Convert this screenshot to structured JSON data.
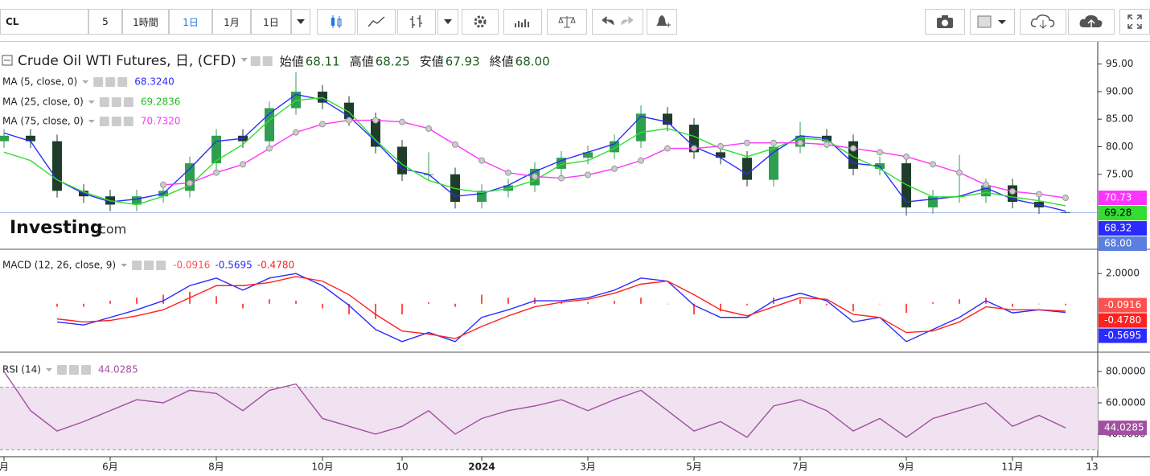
{
  "toolbar": {
    "symbol": "CL",
    "intervals": [
      "5",
      "1時間",
      "1日",
      "1月",
      "1日"
    ]
  },
  "chart_data": [
    {
      "type": "candlestick",
      "title": "Crude Oil WTI Futures, 日, (CFD)",
      "ohlc_labels": [
        {
          "label": "始値",
          "value": "68.11"
        },
        {
          "label": "高値",
          "value": "68.25"
        },
        {
          "label": "安値",
          "value": "67.93"
        },
        {
          "label": "終値",
          "value": "68.00"
        }
      ],
      "open": [
        81,
        82,
        81,
        72,
        71,
        69.5,
        71,
        72,
        77,
        82,
        81,
        87,
        90,
        88,
        85,
        80,
        75,
        75,
        70,
        72,
        73,
        76,
        78,
        79,
        81,
        86,
        84,
        79,
        78,
        74,
        80,
        82,
        81,
        76,
        77,
        69,
        71,
        71,
        73,
        70,
        68.11,
        null
      ],
      "high": [
        83.2,
        83.2,
        82.2,
        73.2,
        72.2,
        72.2,
        73.2,
        78.2,
        83.2,
        83.2,
        88.2,
        93.5,
        91.2,
        89.2,
        86.2,
        81.2,
        79,
        76.2,
        73.2,
        74.2,
        77.2,
        79.2,
        80.2,
        82.2,
        87.5,
        87.2,
        85.2,
        80.2,
        79.2,
        81.2,
        84.5,
        83.2,
        82.2,
        78.2,
        78.2,
        72.2,
        78.5,
        74.2,
        74.2,
        71.2,
        68.25,
        null
      ],
      "low": [
        79.8,
        79.8,
        70.8,
        69.8,
        68.3,
        68.3,
        69.8,
        70.8,
        75.8,
        79.8,
        79.8,
        85.8,
        86.8,
        83.8,
        78.8,
        73.8,
        73.8,
        68.8,
        68.8,
        70.8,
        71.8,
        74.8,
        76.8,
        77.8,
        79.8,
        82.8,
        77.8,
        76.8,
        72.8,
        72.8,
        78.8,
        79.8,
        74.8,
        74.8,
        67.5,
        67.8,
        69.8,
        69.8,
        68.8,
        67.8,
        67.93,
        null
      ],
      "close": [
        82,
        81,
        72,
        71,
        69.5,
        71,
        72,
        77,
        82,
        81,
        87,
        90,
        88,
        85,
        80,
        75,
        75,
        70,
        72,
        73,
        76,
        78,
        79,
        81,
        86,
        84,
        79,
        78,
        74,
        80,
        82,
        81,
        76,
        77,
        69,
        71,
        71,
        73,
        70,
        69,
        68.0,
        null
      ],
      "close_label": "68.00",
      "up_color": "#2f9e4f",
      "down_color": "#1f3d2a",
      "last_line_color": "#5b7fe0",
      "ylim": [
        61.4,
        98.6
      ],
      "yticks": [
        {
          "value": 95,
          "label": "95.00"
        },
        {
          "value": 90,
          "label": "90.00"
        },
        {
          "value": 85,
          "label": "85.00"
        },
        {
          "value": 80,
          "label": "80.00"
        },
        {
          "value": 75,
          "label": "75.00"
        }
      ],
      "series": [
        {
          "name": "MA (5, close, 0)",
          "color": "#2b2bff",
          "legend_value": "68.3240",
          "axis_label": "68.32",
          "values": [
            82.5,
            81,
            74,
            71.5,
            70,
            70.5,
            71.5,
            76,
            81,
            81.5,
            86,
            89.5,
            88.5,
            85.5,
            81,
            76,
            75,
            71,
            71.5,
            73,
            75.5,
            77.5,
            79,
            80.5,
            85.5,
            84.5,
            80,
            78,
            75,
            79,
            82,
            81.5,
            77,
            76.5,
            70,
            70.5,
            71,
            72.5,
            70.5,
            69.5,
            68.324,
            null
          ]
        },
        {
          "name": "MA (25, close, 0)",
          "color": "#33dd33",
          "legend_value": "69.2836",
          "axis_label": "69.28",
          "values": [
            79,
            77.5,
            74,
            71.8,
            70.2,
            69.5,
            71,
            73,
            77.5,
            80.4,
            84.8,
            88.4,
            88.9,
            86.3,
            81.2,
            76.8,
            73.9,
            72.4,
            71.7,
            72.4,
            73.9,
            76.8,
            77.5,
            79.7,
            82.6,
            83.3,
            81.9,
            79.7,
            78.2,
            79.7,
            81.6,
            81.2,
            78.2,
            76,
            73.1,
            70.9,
            70.9,
            71.7,
            70.9,
            70.2,
            69.2836,
            null
          ]
        },
        {
          "name": "MA (75, close, 0)",
          "color": "#ff33ff",
          "legend_value": "70.7320",
          "axis_label": "70.73",
          "dots": true,
          "values": [
            null,
            null,
            null,
            null,
            null,
            null,
            73.1,
            73.4,
            75.3,
            76.8,
            79.7,
            82.6,
            84.1,
            84.8,
            84.8,
            84.5,
            83.3,
            80.4,
            77.5,
            75.3,
            74.6,
            74.3,
            74.9,
            76,
            77.5,
            79.7,
            79.7,
            80.1,
            80.7,
            80.7,
            80.7,
            80.4,
            79.7,
            79,
            78.2,
            76.8,
            75.3,
            73.1,
            71.9,
            71.4,
            70.732,
            null
          ]
        }
      ]
    },
    {
      "type": "line",
      "title": "MACD (12, 26, close, 9)",
      "ylim": [
        -3.2,
        3.5
      ],
      "yticks": [
        {
          "value": 2,
          "label": "2.0000"
        }
      ],
      "series": [
        {
          "kind": "bar",
          "color": "#ff5050",
          "legend_value": "-0.0916",
          "axis_label": "-0.0916",
          "values": [
            null,
            null,
            -0.2,
            -0.2,
            0.2,
            0.4,
            0.6,
            0.8,
            0.5,
            -0.3,
            0.3,
            0.2,
            -0.3,
            -0.7,
            -1.0,
            -0.7,
            0.1,
            -0.2,
            0.6,
            0.4,
            0.4,
            0.1,
            0.1,
            0.2,
            0.4,
            0,
            -0.7,
            -0.5,
            -0.1,
            0.4,
            0.3,
            -0.1,
            -0.5,
            0,
            -0.6,
            0.1,
            0.3,
            0.4,
            -0.2,
            0,
            -0.0916,
            null
          ]
        },
        {
          "color": "#2b2bff",
          "legend_value": "-0.5695",
          "axis_label": "-0.5695",
          "values": [
            null,
            null,
            -1.2,
            -1.4,
            -0.9,
            -0.4,
            0.2,
            1.2,
            1.7,
            0.9,
            1.7,
            2.0,
            1.2,
            -0.1,
            -1.7,
            -2.5,
            -1.9,
            -2.5,
            -0.9,
            -0.4,
            0.2,
            0.2,
            0.4,
            0.9,
            1.7,
            1.5,
            -0.1,
            -0.9,
            -0.9,
            0.2,
            0.7,
            0.2,
            -1.2,
            -0.9,
            -2.5,
            -1.7,
            -0.9,
            0.2,
            -0.6,
            -0.4,
            -0.5695,
            null
          ]
        },
        {
          "color": "#ff2020",
          "legend_value": "-0.4780",
          "axis_label": "-0.4780",
          "values": [
            null,
            null,
            -1.0,
            -1.2,
            -1.1,
            -0.8,
            -0.4,
            0.4,
            1.2,
            1.2,
            1.4,
            1.8,
            1.5,
            0.6,
            -0.7,
            -1.8,
            -2.0,
            -2.3,
            -1.5,
            -0.8,
            -0.2,
            0.1,
            0.3,
            0.7,
            1.3,
            1.5,
            0.6,
            -0.4,
            -0.8,
            -0.2,
            0.4,
            0.3,
            -0.7,
            -0.9,
            -1.9,
            -1.8,
            -1.2,
            -0.2,
            -0.4,
            -0.4,
            -0.478,
            null
          ]
        }
      ]
    },
    {
      "type": "line",
      "title": "RSI (14)",
      "ylim": [
        25.6,
        91.3
      ],
      "yticks": [
        {
          "value": 80,
          "label": "80.0000"
        },
        {
          "value": 60,
          "label": "60.0000"
        },
        {
          "value": 40,
          "label": "40.0000"
        }
      ],
      "bands": [
        70,
        30
      ],
      "band_color": "#f1e2f1",
      "categories": [
        "月",
        null,
        null,
        null,
        "6月",
        null,
        null,
        null,
        "8月",
        null,
        null,
        null,
        "10月",
        null,
        null,
        "10",
        null,
        null,
        "2024",
        null,
        null,
        null,
        "3月",
        null,
        null,
        null,
        "5月",
        null,
        null,
        null,
        "7月",
        null,
        null,
        null,
        "9月",
        null,
        null,
        null,
        "11月",
        null,
        null,
        "13"
      ],
      "series": [
        {
          "color": "#a24fa2",
          "legend_value": "44.0285",
          "axis_label": "44.0285",
          "values": [
            80,
            55,
            42,
            48,
            55,
            62,
            60,
            68,
            66,
            55,
            68,
            72,
            50,
            45,
            40,
            45,
            55,
            40,
            50,
            55,
            58,
            62,
            55,
            62,
            68,
            55,
            42,
            48,
            38,
            58,
            62,
            55,
            42,
            50,
            38,
            50,
            55,
            60,
            45,
            52,
            44.0285,
            null
          ]
        }
      ]
    }
  ]
}
